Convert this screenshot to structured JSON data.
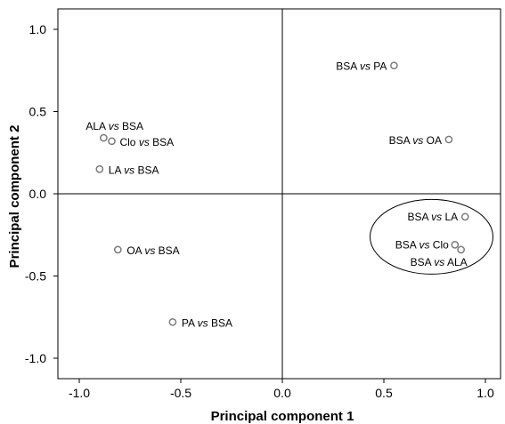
{
  "chart_data": {
    "type": "scatter",
    "xlabel": "Principal component 1",
    "ylabel": "Principal component 2",
    "xlim": [
      -1.1,
      1.1
    ],
    "ylim": [
      -1.1,
      1.1
    ],
    "x_ticks": [
      -1.0,
      -0.5,
      0.0,
      0.5,
      1.0
    ],
    "y_ticks": [
      -1.0,
      -0.5,
      0.0,
      0.5,
      1.0
    ],
    "x_tick_labels": [
      "-1.0",
      "-0.5",
      "0.0",
      "0.5",
      "1.0"
    ],
    "y_tick_labels": [
      "-1.0",
      "-0.5",
      "0.0",
      "0.5",
      "1.0"
    ],
    "grid": false,
    "reference_lines": [
      "x = 0",
      "y = 0"
    ],
    "points": [
      {
        "label": "BSA vs PA",
        "x": 0.55,
        "y": 0.78
      },
      {
        "label": "BSA vs OA",
        "x": 0.82,
        "y": 0.33
      },
      {
        "label": "ALA vs BSA",
        "x": -0.88,
        "y": 0.34
      },
      {
        "label": "Clo vs BSA",
        "x": -0.84,
        "y": 0.32
      },
      {
        "label": "LA vs BSA",
        "x": -0.9,
        "y": 0.15
      },
      {
        "label": "OA vs BSA",
        "x": -0.81,
        "y": -0.34
      },
      {
        "label": "PA vs BSA",
        "x": -0.54,
        "y": -0.78
      },
      {
        "label": "BSA vs LA",
        "x": 0.9,
        "y": -0.14
      },
      {
        "label": "BSA vs Clo",
        "x": 0.85,
        "y": -0.31
      },
      {
        "label": "BSA vs ALA",
        "x": 0.88,
        "y": -0.34
      }
    ],
    "highlight_group": [
      "BSA vs LA",
      "BSA vs Clo",
      "BSA vs ALA"
    ]
  }
}
